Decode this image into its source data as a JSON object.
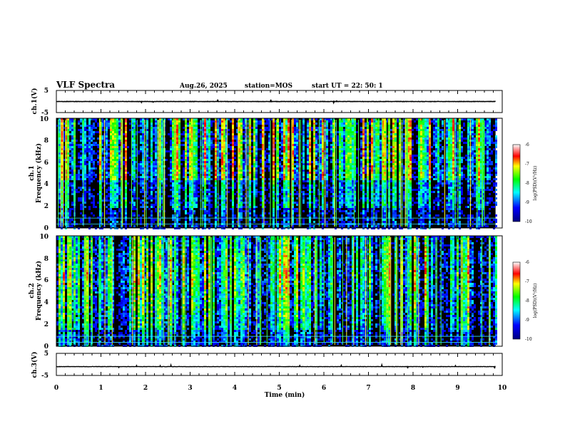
{
  "header": {
    "title": "VLF Spectra",
    "date": "Aug.26, 2025",
    "station": "station=MOS",
    "start_ut": "start  UT  =   22: 50: 1"
  },
  "chart_data": [
    {
      "type": "line",
      "panel": "ch1-waveform",
      "title": "",
      "ylabel": "ch.1(V)",
      "ylim": [
        -5,
        5
      ],
      "yticks": [
        "5",
        "-5"
      ],
      "xlim": [
        0,
        10
      ],
      "note": "baseline near 0 V with small spikes"
    },
    {
      "type": "heatmap",
      "panel": "ch1-spectrogram",
      "ylabel_top": "ch.1",
      "ylabel": "Frequency  (kHz)",
      "ylim": [
        0,
        10
      ],
      "yticks": [
        "0",
        "2",
        "4",
        "6",
        "8",
        "10"
      ],
      "xlim": [
        0,
        10
      ],
      "data_end_min": 9.85,
      "colorbar": {
        "label": "log(PSD)(V²/Hz)",
        "range": [
          -10,
          -6
        ],
        "ticks": [
          "-6",
          "-7",
          "-8",
          "-9",
          "-10"
        ]
      }
    },
    {
      "type": "heatmap",
      "panel": "ch2-spectrogram",
      "ylabel_top": "ch.2",
      "ylabel": "Frequency  (kHz)",
      "ylim": [
        0,
        10
      ],
      "yticks": [
        "0",
        "2",
        "4",
        "6",
        "8",
        "10"
      ],
      "xlim": [
        0,
        10
      ],
      "data_end_min": 9.85,
      "colorbar": {
        "label": "log(PSD)(V²/Hz)",
        "range": [
          -10,
          -6
        ],
        "ticks": [
          "-6",
          "-7",
          "-8",
          "-9",
          "-10"
        ]
      }
    },
    {
      "type": "line",
      "panel": "ch3-waveform",
      "ylabel": "ch.3(V)",
      "ylim": [
        -5,
        5
      ],
      "yticks": [
        "5",
        "-5"
      ],
      "xlim": [
        0,
        10
      ],
      "note": "baseline near -1 V"
    }
  ],
  "xaxis": {
    "label": "Time  (min)",
    "ticks": [
      "0",
      "1",
      "2",
      "3",
      "4",
      "5",
      "6",
      "7",
      "8",
      "9",
      "10"
    ]
  },
  "colors": {
    "background": "#ffffff",
    "spectrogram_bg": "#000000",
    "colormap": [
      "#00007f",
      "#0000ff",
      "#00ffff",
      "#00ff00",
      "#ffff00",
      "#ff0000",
      "#ffffff"
    ]
  }
}
